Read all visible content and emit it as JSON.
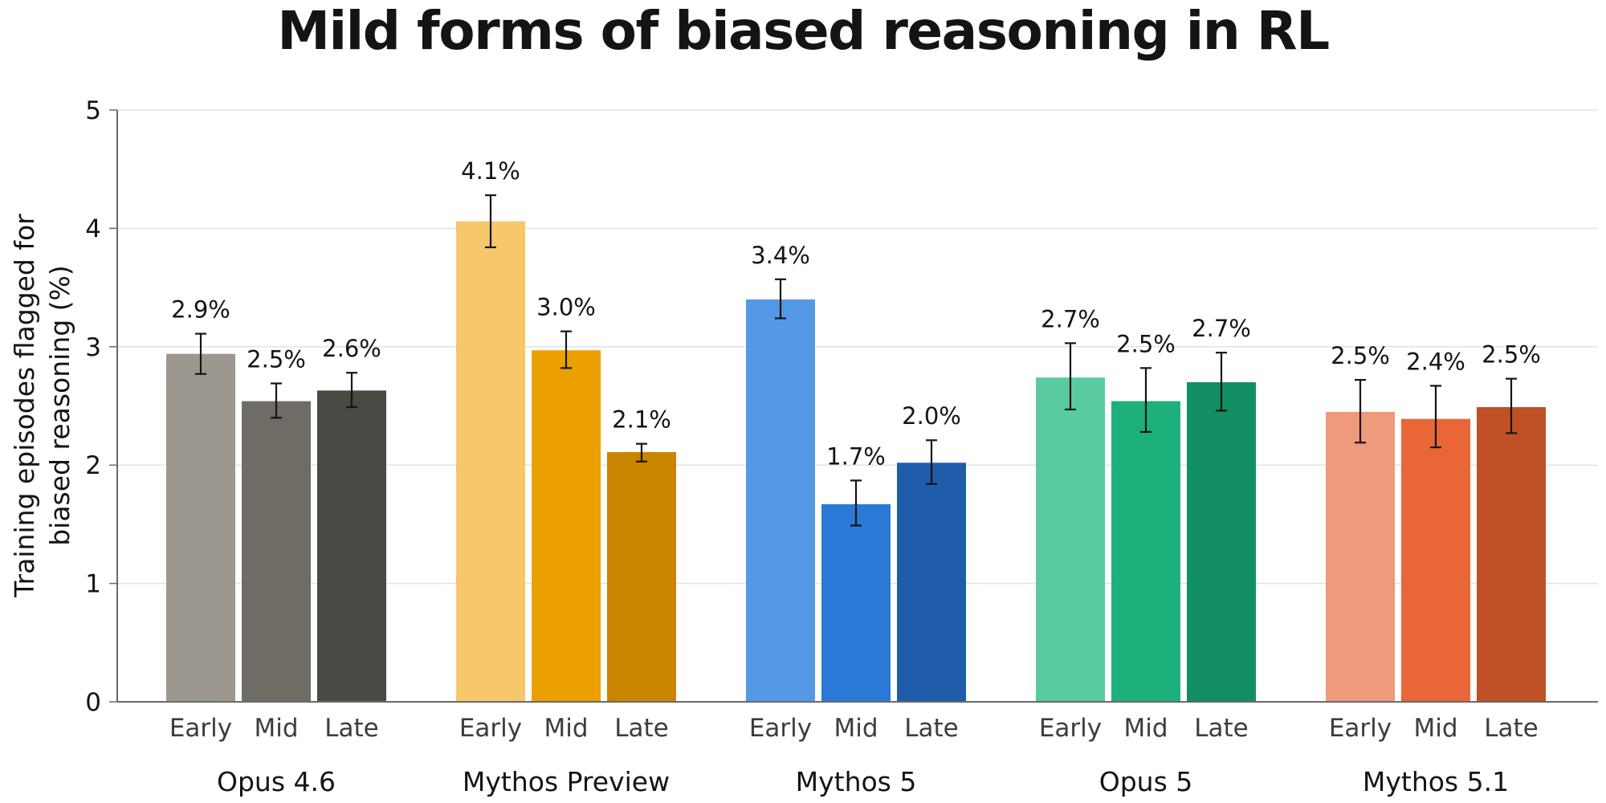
{
  "chart_data": {
    "type": "bar",
    "title": "Mild forms of biased reasoning in RL",
    "ylabel": [
      "Training episodes flagged for",
      "biased reasoning (%)"
    ],
    "ylim": [
      0,
      5
    ],
    "yticks": [
      0,
      1,
      2,
      3,
      4,
      5
    ],
    "grid": true,
    "subcategories": [
      "Early",
      "Mid",
      "Late"
    ],
    "groups": [
      {
        "name": "Opus 4.6",
        "colors": [
          "#9c9890",
          "#6f6c66",
          "#4a4944"
        ],
        "bars": [
          {
            "label": "Early",
            "value": 2.94,
            "err_low": 2.77,
            "err_high": 3.11,
            "text": "2.9%"
          },
          {
            "label": "Mid",
            "value": 2.54,
            "err_low": 2.4,
            "err_high": 2.69,
            "text": "2.5%"
          },
          {
            "label": "Late",
            "value": 2.63,
            "err_low": 2.49,
            "err_high": 2.78,
            "text": "2.6%"
          }
        ]
      },
      {
        "name": "Mythos Preview",
        "colors": [
          "#f6c86b",
          "#eba000",
          "#c98400"
        ],
        "bars": [
          {
            "label": "Early",
            "value": 4.06,
            "err_low": 3.84,
            "err_high": 4.28,
            "text": "4.1%"
          },
          {
            "label": "Mid",
            "value": 2.97,
            "err_low": 2.82,
            "err_high": 3.13,
            "text": "3.0%"
          },
          {
            "label": "Late",
            "value": 2.11,
            "err_low": 2.03,
            "err_high": 2.18,
            "text": "2.1%"
          }
        ]
      },
      {
        "name": "Mythos 5",
        "colors": [
          "#5599e6",
          "#2a79d6",
          "#1f5dab"
        ],
        "bars": [
          {
            "label": "Early",
            "value": 3.4,
            "err_low": 3.24,
            "err_high": 3.57,
            "text": "3.4%"
          },
          {
            "label": "Mid",
            "value": 1.67,
            "err_low": 1.49,
            "err_high": 1.87,
            "text": "1.7%"
          },
          {
            "label": "Late",
            "value": 2.02,
            "err_low": 1.84,
            "err_high": 2.21,
            "text": "2.0%"
          }
        ]
      },
      {
        "name": "Opus 5",
        "colors": [
          "#5acb9f",
          "#1db07a",
          "#138f64"
        ],
        "bars": [
          {
            "label": "Early",
            "value": 2.74,
            "err_low": 2.47,
            "err_high": 3.03,
            "text": "2.7%"
          },
          {
            "label": "Mid",
            "value": 2.54,
            "err_low": 2.28,
            "err_high": 2.82,
            "text": "2.5%"
          },
          {
            "label": "Late",
            "value": 2.7,
            "err_low": 2.46,
            "err_high": 2.95,
            "text": "2.7%"
          }
        ]
      },
      {
        "name": "Mythos 5.1",
        "colors": [
          "#ef9a7a",
          "#e86637",
          "#c05026"
        ],
        "bars": [
          {
            "label": "Early",
            "value": 2.45,
            "err_low": 2.19,
            "err_high": 2.72,
            "text": "2.5%"
          },
          {
            "label": "Mid",
            "value": 2.39,
            "err_low": 2.15,
            "err_high": 2.67,
            "text": "2.4%"
          },
          {
            "label": "Late",
            "value": 2.49,
            "err_low": 2.27,
            "err_high": 2.73,
            "text": "2.5%"
          }
        ]
      }
    ]
  }
}
